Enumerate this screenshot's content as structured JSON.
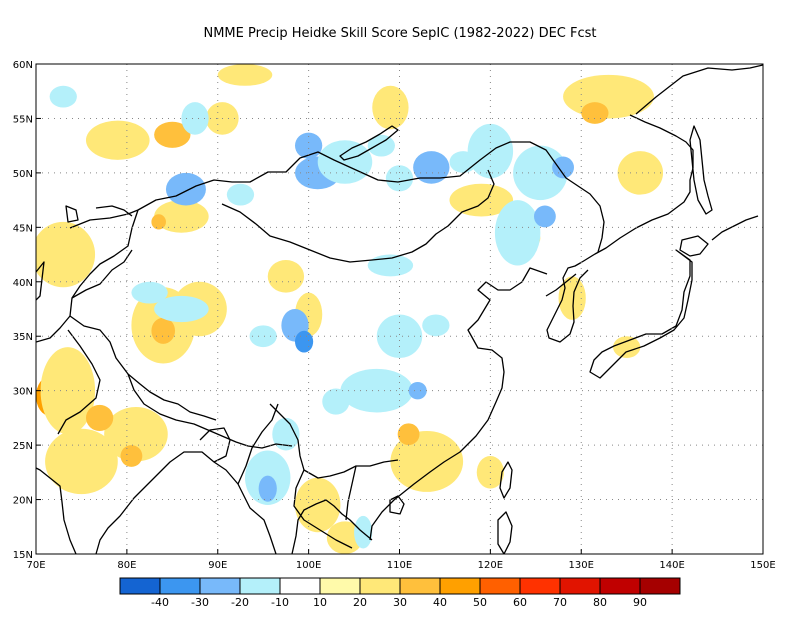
{
  "title": "NMME Precip Heidke Skill Score SepIC (1982-2022) DEC Fcst",
  "lat_labels": [
    "60N",
    "55N",
    "50N",
    "45N",
    "40N",
    "35N",
    "30N",
    "25N",
    "20N",
    "15N"
  ],
  "lon_labels": [
    "70E",
    "80E",
    "90E",
    "100E",
    "110E",
    "120E",
    "130E",
    "140E",
    "150E"
  ],
  "colorbar": {
    "colors": [
      "#1464d2",
      "#3c96f0",
      "#78b9fa",
      "#b4f0fa",
      "#ffffff",
      "#fffaaa",
      "#ffe878",
      "#ffc03c",
      "#ffa000",
      "#ff6000",
      "#ff3200",
      "#e11400",
      "#c00000",
      "#a50000"
    ],
    "labels": [
      "-40",
      "-30",
      "-20",
      "-10",
      "10",
      "20",
      "30",
      "40",
      "50",
      "60",
      "70",
      "80",
      "90"
    ]
  },
  "chart_data": {
    "type": "heatmap",
    "title": "NMME Precip Heidke Skill Score SepIC (1982-2022) DEC Fcst",
    "xlim": [
      70,
      150
    ],
    "ylim": [
      15,
      60
    ],
    "x_ticks": [
      "70E",
      "80E",
      "90E",
      "100E",
      "110E",
      "120E",
      "130E",
      "140E",
      "150E"
    ],
    "y_ticks": [
      "60N",
      "55N",
      "50N",
      "45N",
      "40N",
      "35N",
      "30N",
      "25N",
      "20N",
      "15N"
    ],
    "grid": true,
    "blobs": [
      {
        "lon": 73,
        "lat": 42.5,
        "rx": 3.5,
        "ry": 3,
        "level": 20
      },
      {
        "lon": 71.5,
        "lat": 29.5,
        "rx": 1.5,
        "ry": 1.8,
        "level": 40
      },
      {
        "lon": 73.5,
        "lat": 30,
        "rx": 3,
        "ry": 4,
        "level": 20
      },
      {
        "lon": 75,
        "lat": 23.5,
        "rx": 4,
        "ry": 3,
        "level": 20
      },
      {
        "lon": 81,
        "lat": 26,
        "rx": 3.5,
        "ry": 2.5,
        "level": 20
      },
      {
        "lon": 77,
        "lat": 27.5,
        "rx": 1.5,
        "ry": 1.2,
        "level": 30
      },
      {
        "lon": 80.5,
        "lat": 24,
        "rx": 1.2,
        "ry": 1,
        "level": 30
      },
      {
        "lon": 84,
        "lat": 36,
        "rx": 3.5,
        "ry": 3.5,
        "level": 20
      },
      {
        "lon": 84,
        "lat": 35.5,
        "rx": 1.3,
        "ry": 1.2,
        "level": 30
      },
      {
        "lon": 88,
        "lat": 37.5,
        "rx": 3,
        "ry": 2.5,
        "level": 20
      },
      {
        "lon": 79,
        "lat": 53,
        "rx": 3.5,
        "ry": 1.8,
        "level": 20
      },
      {
        "lon": 85,
        "lat": 53.5,
        "rx": 2,
        "ry": 1.2,
        "level": 30
      },
      {
        "lon": 90.5,
        "lat": 55,
        "rx": 1.8,
        "ry": 1.5,
        "level": 20
      },
      {
        "lon": 86,
        "lat": 46,
        "rx": 3,
        "ry": 1.5,
        "level": 20
      },
      {
        "lon": 83.5,
        "lat": 45.5,
        "rx": 0.8,
        "ry": 0.7,
        "level": 30
      },
      {
        "lon": 100,
        "lat": 37,
        "rx": 1.5,
        "ry": 2,
        "level": 20
      },
      {
        "lon": 97.5,
        "lat": 40.5,
        "rx": 2,
        "ry": 1.5,
        "level": 20
      },
      {
        "lon": 109,
        "lat": 56,
        "rx": 2,
        "ry": 2,
        "level": 20
      },
      {
        "lon": 113,
        "lat": 23.5,
        "rx": 4,
        "ry": 2.8,
        "level": 20
      },
      {
        "lon": 111,
        "lat": 26,
        "rx": 1.2,
        "ry": 1,
        "level": 30
      },
      {
        "lon": 119,
        "lat": 47.5,
        "rx": 3.5,
        "ry": 1.5,
        "level": 20
      },
      {
        "lon": 124,
        "lat": 44,
        "rx": 1.5,
        "ry": 1,
        "level": 20
      },
      {
        "lon": 133,
        "lat": 57,
        "rx": 5,
        "ry": 2,
        "level": 20
      },
      {
        "lon": 131.5,
        "lat": 55.5,
        "rx": 1.5,
        "ry": 1,
        "level": 30
      },
      {
        "lon": 136.5,
        "lat": 50,
        "rx": 2.5,
        "ry": 2,
        "level": 20
      },
      {
        "lon": 129,
        "lat": 38.5,
        "rx": 1.5,
        "ry": 2,
        "level": 20
      },
      {
        "lon": 101,
        "lat": 19.5,
        "rx": 2.5,
        "ry": 2.5,
        "level": 20
      },
      {
        "lon": 104,
        "lat": 16.5,
        "rx": 2,
        "ry": 1.5,
        "level": 20
      },
      {
        "lon": 120,
        "lat": 22.5,
        "rx": 1.5,
        "ry": 1.5,
        "level": 20
      },
      {
        "lon": 93,
        "lat": 59,
        "rx": 3,
        "ry": 1,
        "level": 20
      },
      {
        "lon": 135,
        "lat": 34,
        "rx": 1.5,
        "ry": 1,
        "level": 20
      },
      {
        "lon": 86.5,
        "lat": 48.5,
        "rx": 2.2,
        "ry": 1.5,
        "level": -20
      },
      {
        "lon": 92.5,
        "lat": 48,
        "rx": 1.5,
        "ry": 1,
        "level": -10
      },
      {
        "lon": 101,
        "lat": 50,
        "rx": 2.5,
        "ry": 1.5,
        "level": -20
      },
      {
        "lon": 104,
        "lat": 51,
        "rx": 3,
        "ry": 2,
        "level": -10
      },
      {
        "lon": 110,
        "lat": 49.5,
        "rx": 1.5,
        "ry": 1.2,
        "level": -10
      },
      {
        "lon": 113.5,
        "lat": 50.5,
        "rx": 2,
        "ry": 1.5,
        "level": -20
      },
      {
        "lon": 120,
        "lat": 52,
        "rx": 2.5,
        "ry": 2.5,
        "level": -10
      },
      {
        "lon": 125.5,
        "lat": 50,
        "rx": 3,
        "ry": 2.5,
        "level": -10
      },
      {
        "lon": 128,
        "lat": 50.5,
        "rx": 1.2,
        "ry": 1,
        "level": -20
      },
      {
        "lon": 123,
        "lat": 44.5,
        "rx": 2.5,
        "ry": 3,
        "level": -10
      },
      {
        "lon": 126,
        "lat": 46,
        "rx": 1.2,
        "ry": 1,
        "level": -20
      },
      {
        "lon": 110,
        "lat": 35,
        "rx": 2.5,
        "ry": 2,
        "level": -10
      },
      {
        "lon": 107.5,
        "lat": 30,
        "rx": 4,
        "ry": 2,
        "level": -10
      },
      {
        "lon": 112,
        "lat": 30,
        "rx": 1,
        "ry": 0.8,
        "level": -20
      },
      {
        "lon": 103,
        "lat": 29,
        "rx": 1.5,
        "ry": 1.2,
        "level": -10
      },
      {
        "lon": 98.5,
        "lat": 36,
        "rx": 1.5,
        "ry": 1.5,
        "level": -20
      },
      {
        "lon": 99.5,
        "lat": 34.5,
        "rx": 1,
        "ry": 1,
        "level": -30
      },
      {
        "lon": 95,
        "lat": 35,
        "rx": 1.5,
        "ry": 1,
        "level": -10
      },
      {
        "lon": 95.5,
        "lat": 22,
        "rx": 2.5,
        "ry": 2.5,
        "level": -10
      },
      {
        "lon": 95.5,
        "lat": 21,
        "rx": 1,
        "ry": 1.2,
        "level": -20
      },
      {
        "lon": 97.5,
        "lat": 26,
        "rx": 1.5,
        "ry": 1.5,
        "level": -10
      },
      {
        "lon": 86,
        "lat": 37.5,
        "rx": 3,
        "ry": 1.2,
        "level": -10
      },
      {
        "lon": 82.5,
        "lat": 39,
        "rx": 2,
        "ry": 1,
        "level": -10
      },
      {
        "lon": 73,
        "lat": 57,
        "rx": 1.5,
        "ry": 1,
        "level": -10
      },
      {
        "lon": 109,
        "lat": 41.5,
        "rx": 2.5,
        "ry": 1,
        "level": -10
      },
      {
        "lon": 100,
        "lat": 52.5,
        "rx": 1.5,
        "ry": 1.2,
        "level": -20
      },
      {
        "lon": 108,
        "lat": 52.5,
        "rx": 1.5,
        "ry": 1,
        "level": -10
      },
      {
        "lon": 117,
        "lat": 51,
        "rx": 1.5,
        "ry": 1,
        "level": -10
      },
      {
        "lon": 87.5,
        "lat": 55,
        "rx": 1.5,
        "ry": 1.5,
        "level": -10
      },
      {
        "lon": 114,
        "lat": 36,
        "rx": 1.5,
        "ry": 1,
        "level": -10
      },
      {
        "lon": 106,
        "lat": 17,
        "rx": 1,
        "ry": 1.5,
        "level": -10
      }
    ]
  }
}
